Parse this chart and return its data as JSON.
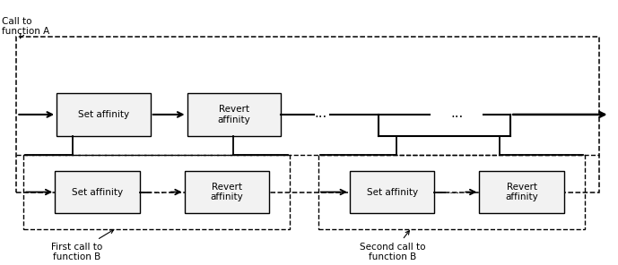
{
  "figsize": [
    6.89,
    2.96
  ],
  "dpi": 100,
  "bg_color": "#ffffff",
  "text_color": "#000000",
  "box_color": "#f2f2f2",
  "box_edge_color": "#000000",
  "dashed_color": "#000000",
  "labels": {
    "call_to_A": "Call to\nfunction A",
    "first_call_B": "First call to\nfunction B",
    "second_call_B": "Second call to\nfunction B",
    "set_affinity": "Set affinity",
    "revert_affinity": "Revert\naffinity",
    "dots": "..."
  },
  "font_size": 7.5
}
